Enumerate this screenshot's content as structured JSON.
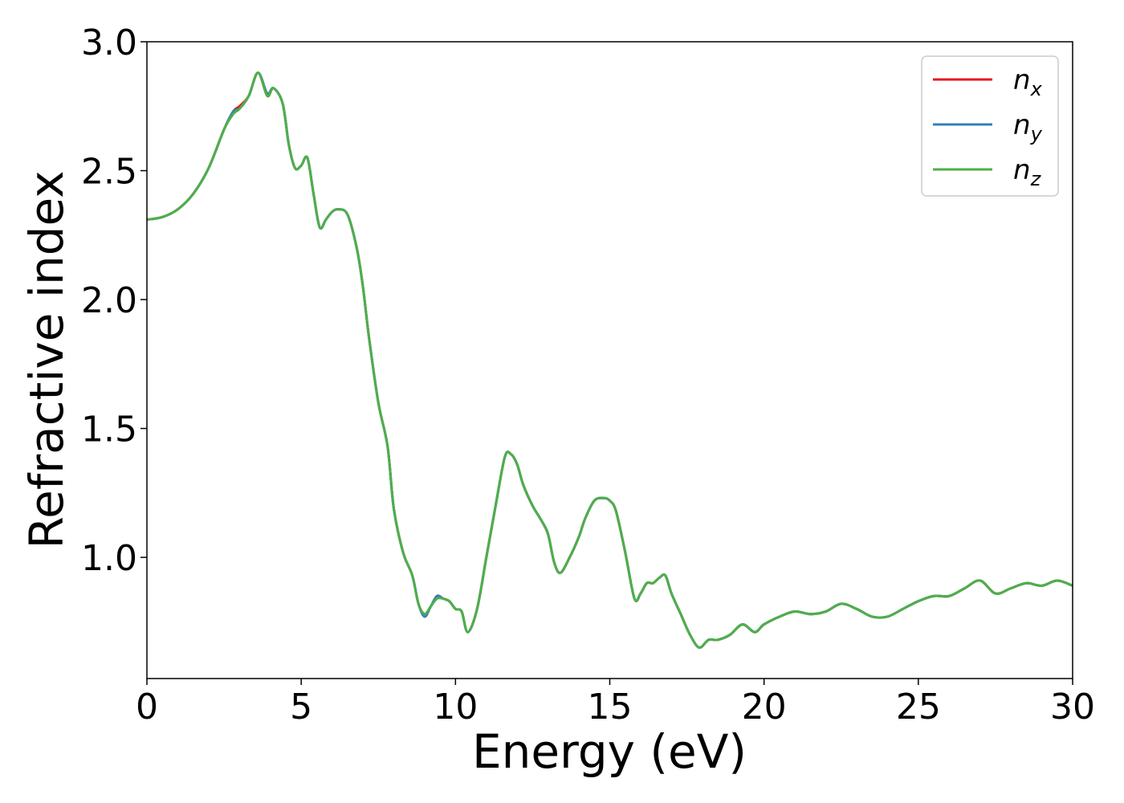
{
  "chart_data": {
    "type": "line",
    "title": "",
    "xlabel": "Energy (eV)",
    "ylabel": "Refractive index",
    "xlim": [
      0,
      30
    ],
    "ylim": [
      0.53,
      3.0
    ],
    "xticks": [
      0,
      5,
      10,
      15,
      20,
      25,
      30
    ],
    "xtick_labels": [
      "0",
      "5",
      "10",
      "15",
      "20",
      "25",
      "30"
    ],
    "yticks": [
      1.0,
      1.5,
      2.0,
      2.5,
      3.0
    ],
    "ytick_labels": [
      "1.0",
      "1.5",
      "2.0",
      "2.5",
      "3.0"
    ],
    "grid": false,
    "legend_position": "top-right",
    "x": [
      0,
      0.5,
      1,
      1.5,
      2,
      2.5,
      2.8,
      3.0,
      3.3,
      3.6,
      3.9,
      4.1,
      4.4,
      4.6,
      4.8,
      5.0,
      5.2,
      5.4,
      5.6,
      5.8,
      6.0,
      6.2,
      6.5,
      6.8,
      7.0,
      7.2,
      7.5,
      7.8,
      8.0,
      8.3,
      8.6,
      8.8,
      9.0,
      9.2,
      9.4,
      9.6,
      9.8,
      10.0,
      10.2,
      10.4,
      10.7,
      11.0,
      11.3,
      11.6,
      11.8,
      12.0,
      12.2,
      12.5,
      12.8,
      13.0,
      13.2,
      13.4,
      13.7,
      14.0,
      14.2,
      14.5,
      14.8,
      15.0,
      15.2,
      15.5,
      15.8,
      16.0,
      16.2,
      16.4,
      16.6,
      16.8,
      17.0,
      17.3,
      17.6,
      17.9,
      18.2,
      18.5,
      18.9,
      19.3,
      19.7,
      20.0,
      20.5,
      21.0,
      21.5,
      22.0,
      22.5,
      23.0,
      23.5,
      24.0,
      24.5,
      25.0,
      25.5,
      26.0,
      26.5,
      27.0,
      27.5,
      28.0,
      28.5,
      29.0,
      29.5,
      30.0
    ],
    "series": [
      {
        "name": "n_x",
        "label_base": "n",
        "label_sub": "x",
        "color": "#e41a1c",
        "values": [
          2.31,
          2.32,
          2.35,
          2.41,
          2.51,
          2.66,
          2.73,
          2.75,
          2.79,
          2.88,
          2.79,
          2.82,
          2.76,
          2.6,
          2.51,
          2.52,
          2.55,
          2.41,
          2.28,
          2.31,
          2.34,
          2.35,
          2.33,
          2.2,
          2.05,
          1.85,
          1.6,
          1.43,
          1.19,
          1.02,
          0.93,
          0.82,
          0.78,
          0.81,
          0.85,
          0.84,
          0.83,
          0.8,
          0.79,
          0.71,
          0.8,
          1.0,
          1.2,
          1.39,
          1.4,
          1.36,
          1.28,
          1.2,
          1.14,
          1.09,
          0.98,
          0.94,
          1.0,
          1.08,
          1.15,
          1.22,
          1.23,
          1.22,
          1.18,
          1.02,
          0.84,
          0.86,
          0.9,
          0.9,
          0.92,
          0.93,
          0.86,
          0.78,
          0.7,
          0.65,
          0.68,
          0.68,
          0.7,
          0.74,
          0.71,
          0.74,
          0.77,
          0.79,
          0.78,
          0.79,
          0.82,
          0.8,
          0.77,
          0.77,
          0.8,
          0.83,
          0.85,
          0.85,
          0.88,
          0.91,
          0.86,
          0.88,
          0.9,
          0.89,
          0.91,
          0.89
        ]
      },
      {
        "name": "n_y",
        "label_base": "n",
        "label_sub": "y",
        "color": "#377eb8",
        "values": [
          2.31,
          2.32,
          2.35,
          2.41,
          2.51,
          2.66,
          2.73,
          2.74,
          2.79,
          2.88,
          2.8,
          2.82,
          2.76,
          2.6,
          2.51,
          2.52,
          2.55,
          2.41,
          2.28,
          2.31,
          2.34,
          2.35,
          2.33,
          2.2,
          2.05,
          1.85,
          1.6,
          1.43,
          1.19,
          1.02,
          0.93,
          0.82,
          0.77,
          0.81,
          0.85,
          0.84,
          0.83,
          0.8,
          0.79,
          0.71,
          0.8,
          1.0,
          1.2,
          1.39,
          1.4,
          1.36,
          1.28,
          1.2,
          1.14,
          1.09,
          0.98,
          0.94,
          1.0,
          1.08,
          1.15,
          1.22,
          1.23,
          1.22,
          1.18,
          1.02,
          0.84,
          0.86,
          0.9,
          0.9,
          0.92,
          0.93,
          0.86,
          0.78,
          0.7,
          0.65,
          0.68,
          0.68,
          0.7,
          0.74,
          0.71,
          0.74,
          0.77,
          0.79,
          0.78,
          0.79,
          0.82,
          0.8,
          0.77,
          0.77,
          0.8,
          0.83,
          0.85,
          0.85,
          0.88,
          0.91,
          0.86,
          0.88,
          0.9,
          0.89,
          0.91,
          0.89
        ]
      },
      {
        "name": "n_z",
        "label_base": "n",
        "label_sub": "z",
        "color": "#4daf4a",
        "values": [
          2.31,
          2.32,
          2.35,
          2.41,
          2.51,
          2.66,
          2.72,
          2.74,
          2.79,
          2.88,
          2.79,
          2.82,
          2.76,
          2.6,
          2.51,
          2.52,
          2.55,
          2.41,
          2.28,
          2.31,
          2.34,
          2.35,
          2.33,
          2.2,
          2.05,
          1.85,
          1.6,
          1.43,
          1.19,
          1.02,
          0.93,
          0.82,
          0.78,
          0.81,
          0.84,
          0.84,
          0.83,
          0.8,
          0.79,
          0.71,
          0.8,
          1.0,
          1.2,
          1.39,
          1.4,
          1.36,
          1.28,
          1.2,
          1.14,
          1.09,
          0.98,
          0.94,
          1.0,
          1.08,
          1.15,
          1.22,
          1.23,
          1.22,
          1.18,
          1.02,
          0.84,
          0.86,
          0.9,
          0.9,
          0.92,
          0.93,
          0.86,
          0.78,
          0.7,
          0.65,
          0.68,
          0.68,
          0.7,
          0.74,
          0.71,
          0.74,
          0.77,
          0.79,
          0.78,
          0.79,
          0.82,
          0.8,
          0.77,
          0.77,
          0.8,
          0.83,
          0.85,
          0.85,
          0.88,
          0.91,
          0.86,
          0.88,
          0.9,
          0.89,
          0.91,
          0.89
        ]
      }
    ]
  }
}
